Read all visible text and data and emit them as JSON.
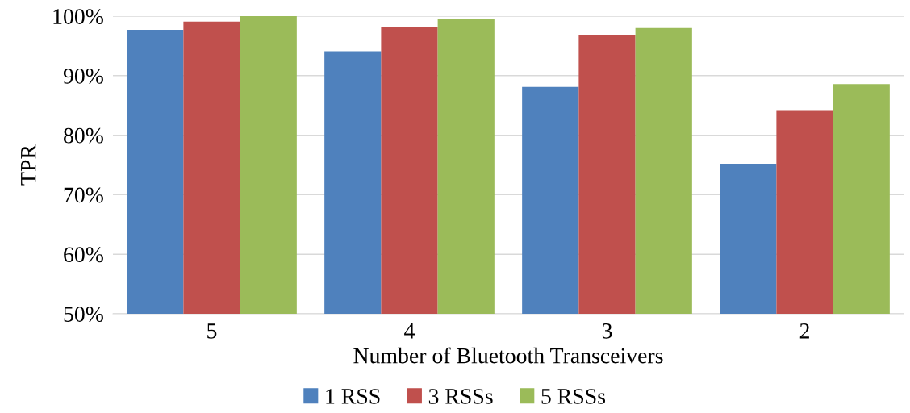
{
  "chart_data": {
    "type": "bar",
    "xlabel": "Number of Bluetooth Transceivers",
    "ylabel": "TPR",
    "categories": [
      "5",
      "4",
      "3",
      "2"
    ],
    "series": [
      {
        "name": "1 RSS",
        "color": "#4f81bd",
        "values": [
          97.7,
          94.1,
          88.1,
          75.2
        ]
      },
      {
        "name": "3 RSSs",
        "color": "#c0504d",
        "values": [
          99.1,
          98.2,
          96.8,
          84.2
        ]
      },
      {
        "name": "5 RSSs",
        "color": "#9bbb59",
        "values": [
          100,
          99.5,
          98.0,
          88.6
        ]
      }
    ],
    "ylim": [
      50,
      100
    ],
    "yticks": [
      {
        "value": 50,
        "label": "50%"
      },
      {
        "value": 60,
        "label": "60%"
      },
      {
        "value": 70,
        "label": "70%"
      },
      {
        "value": 80,
        "label": "80%"
      },
      {
        "value": 90,
        "label": "90%"
      },
      {
        "value": 100,
        "label": "100%"
      }
    ],
    "grid": "y",
    "legend": "bottom"
  }
}
